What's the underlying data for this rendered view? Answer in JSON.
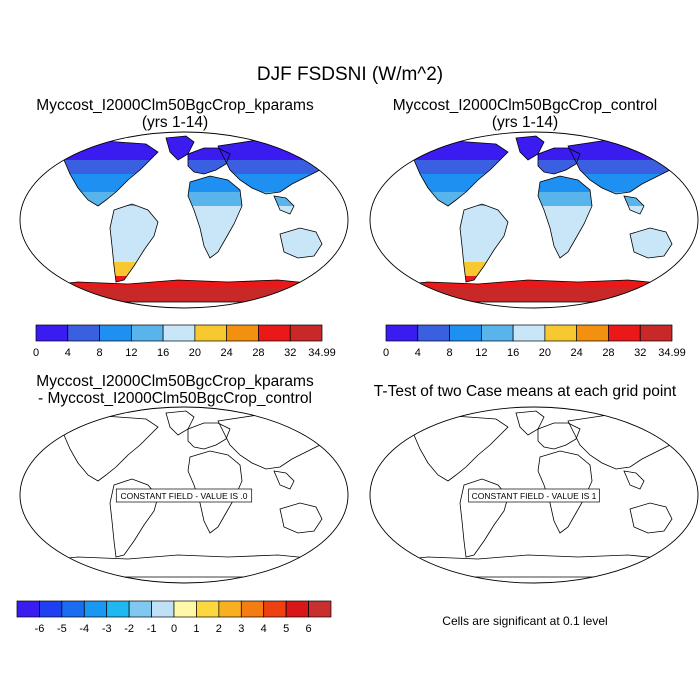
{
  "title": "DJF FSDSNI (W/m^2)",
  "panels": [
    {
      "title_line1": "Myccost_I2000Clm50BgcCrop_kparams",
      "title_line2": "(yrs 1-14)",
      "colorbar_labels": [
        "0",
        "4",
        "8",
        "12",
        "16",
        "20",
        "24",
        "28",
        "32",
        "34.99"
      ],
      "colorbar_colors": [
        "#3a1bf0",
        "#3a5fe0",
        "#1e90f2",
        "#5ab4ec",
        "#c8e6f8",
        "#f8c830",
        "#f49010",
        "#ea1818",
        "#c82828"
      ]
    },
    {
      "title_line1": "Myccost_I2000Clm50BgcCrop_control",
      "title_line2": "(yrs 1-14)",
      "colorbar_labels": [
        "0",
        "4",
        "8",
        "12",
        "16",
        "20",
        "24",
        "28",
        "32",
        "34.99"
      ],
      "colorbar_colors": [
        "#3a1bf0",
        "#3a5fe0",
        "#1e90f2",
        "#5ab4ec",
        "#c8e6f8",
        "#f8c830",
        "#f49010",
        "#ea1818",
        "#c82828"
      ]
    },
    {
      "title_line1": "Myccost_I2000Clm50BgcCrop_kparams",
      "title_line2": "- Myccost_I2000Clm50BgcCrop_control",
      "annotation": "CONSTANT FIELD - VALUE IS .0",
      "colorbar_labels": [
        "-6",
        "-5",
        "-4",
        "-3",
        "-2",
        "-1",
        "0",
        "1",
        "2",
        "3",
        "4",
        "5",
        "6"
      ],
      "colorbar_colors": [
        "#3a1bf0",
        "#1e40f0",
        "#1a6cf0",
        "#1898f2",
        "#20b8f2",
        "#80c8f0",
        "#c0e0f8",
        "#fff8a8",
        "#fcd840",
        "#f8b020",
        "#f47c10",
        "#ee4010",
        "#d81818",
        "#c83030"
      ]
    },
    {
      "title_line1": "T-Test of two Case means at each grid point",
      "annotation": "CONSTANT FIELD - VALUE IS 1",
      "footnote": "Cells are significant at 0.1 level"
    }
  ],
  "map_colors": {
    "ocean": "#ffffff",
    "arctic": "#3a1bf0",
    "boreal": "#3a5fe0",
    "midlat": "#1e90f2",
    "subtrop": "#5ab4ec",
    "tropics": "#c8e6f8",
    "patagonia": "#f8c830",
    "antarctic_edge": "#ea1818",
    "antarctic": "#c82828"
  }
}
